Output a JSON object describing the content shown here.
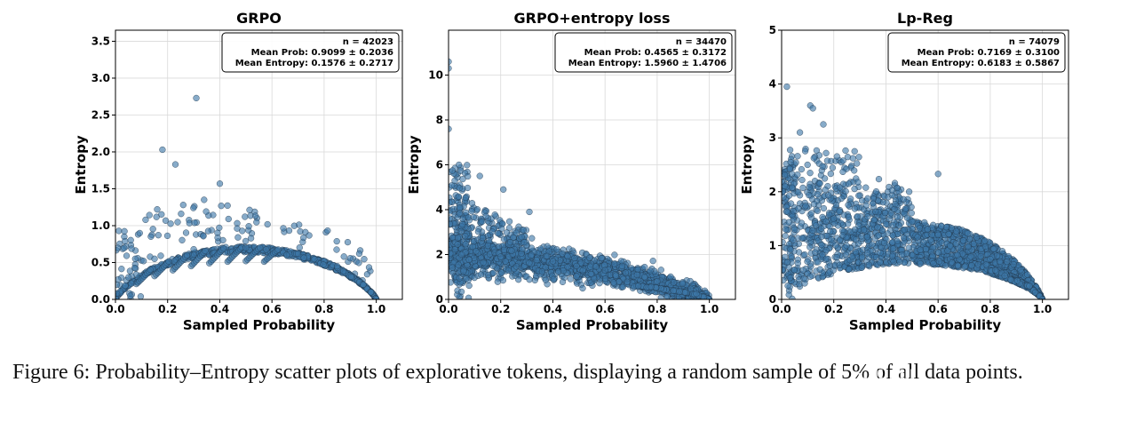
{
  "colors": {
    "point_fill": "#3e78a8",
    "point_stroke": "#22384d",
    "grid": "#d9d9d9",
    "axis": "#000000"
  },
  "chart_data": [
    {
      "type": "scatter",
      "title": "GRPO",
      "xlabel": "Sampled Probability",
      "ylabel": "Entropy",
      "xlim": [
        0.0,
        1.1
      ],
      "ylim": [
        0.0,
        3.65
      ],
      "xticks": [
        "0.0",
        "0.2",
        "0.4",
        "0.6",
        "0.8",
        "1.0"
      ],
      "yticks": [
        "0.0",
        "0.5",
        "1.0",
        "1.5",
        "2.0",
        "2.5",
        "3.0",
        "3.5"
      ],
      "grid": true,
      "stats": [
        "n = 42023",
        "Mean Prob: 0.9099 ± 0.2036",
        "Mean Entropy: 0.1576 ± 0.2717"
      ],
      "outliers": [
        [
          0.31,
          2.73
        ],
        [
          0.18,
          2.03
        ],
        [
          0.23,
          1.83
        ],
        [
          0.4,
          1.57
        ],
        [
          0.16,
          1.22
        ],
        [
          0.34,
          1.35
        ],
        [
          0.26,
          1.28
        ]
      ],
      "series_sample": [
        [
          0.05,
          0.3
        ],
        [
          0.15,
          0.55
        ],
        [
          0.3,
          0.68
        ],
        [
          0.5,
          0.7
        ],
        [
          0.7,
          0.62
        ],
        [
          0.85,
          0.45
        ],
        [
          0.95,
          0.2
        ],
        [
          1.0,
          0.0
        ]
      ]
    },
    {
      "type": "scatter",
      "title": "GRPO+entropy loss",
      "xlabel": "Sampled Probability",
      "ylabel": "Entropy",
      "xlim": [
        0.0,
        1.1
      ],
      "ylim": [
        0.0,
        12.0
      ],
      "xticks": [
        "0.0",
        "0.2",
        "0.4",
        "0.6",
        "0.8",
        "1.0"
      ],
      "yticks": [
        "0",
        "2",
        "4",
        "6",
        "8",
        "10"
      ],
      "grid": true,
      "stats": [
        "n = 34470",
        "Mean Prob: 0.4565 ± 0.3172",
        "Mean Entropy: 1.5960 ± 1.4706"
      ],
      "outliers": [
        [
          0.0,
          10.6
        ],
        [
          0.0,
          10.3
        ],
        [
          0.0,
          7.6
        ],
        [
          0.04,
          6.0
        ],
        [
          0.12,
          5.5
        ],
        [
          0.21,
          4.9
        ],
        [
          0.31,
          3.9
        ]
      ],
      "series_sample": [
        [
          0.05,
          2.0
        ],
        [
          0.2,
          1.9
        ],
        [
          0.4,
          1.7
        ],
        [
          0.6,
          1.3
        ],
        [
          0.8,
          0.8
        ],
        [
          0.95,
          0.25
        ],
        [
          1.0,
          0.0
        ]
      ]
    },
    {
      "type": "scatter",
      "title": "Lp-Reg",
      "xlabel": "Sampled Probability",
      "ylabel": "Entropy",
      "xlim": [
        0.0,
        1.1
      ],
      "ylim": [
        0.0,
        5.0
      ],
      "xticks": [
        "0.0",
        "0.2",
        "0.4",
        "0.6",
        "0.8",
        "1.0"
      ],
      "yticks": [
        "0",
        "1",
        "2",
        "3",
        "4",
        "5"
      ],
      "grid": true,
      "stats": [
        "n = 74079",
        "Mean Prob: 0.7169 ± 0.3100",
        "Mean Entropy: 0.6183 ± 0.5867"
      ],
      "outliers": [
        [
          0.02,
          3.95
        ],
        [
          0.11,
          3.6
        ],
        [
          0.12,
          3.55
        ],
        [
          0.16,
          3.25
        ],
        [
          0.07,
          3.1
        ],
        [
          0.28,
          2.75
        ],
        [
          0.6,
          2.33
        ]
      ],
      "series_sample": [
        [
          0.05,
          1.3
        ],
        [
          0.2,
          1.5
        ],
        [
          0.4,
          1.4
        ],
        [
          0.6,
          1.2
        ],
        [
          0.8,
          0.75
        ],
        [
          0.95,
          0.25
        ],
        [
          1.0,
          0.0
        ]
      ]
    }
  ],
  "caption": "Figure 6: Probability–Entropy scatter plots of explorative tokens, displaying a random sample of 5% of all data points.",
  "watermark": "ıılll ıılll"
}
